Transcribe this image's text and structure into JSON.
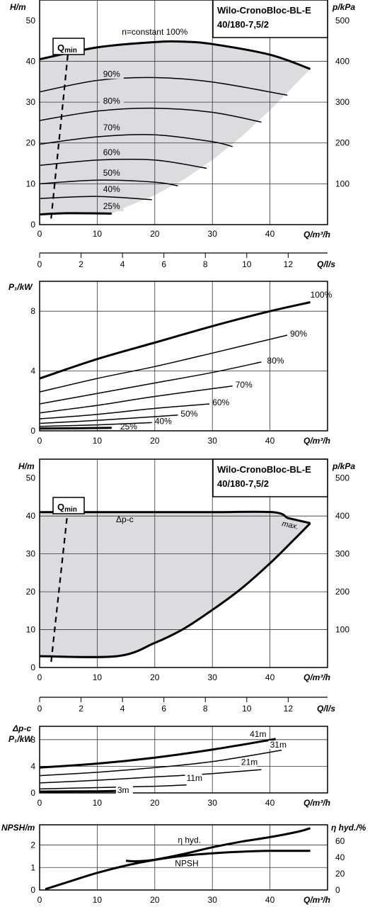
{
  "chart_data": [
    {
      "type": "line",
      "title": "Wilo-CronoBloc-BL-E 40/180-7,5/2",
      "title_line1": "Wilo-CronoBloc-BL-E",
      "title_line2": "40/180-7,5/2",
      "ylabel": "H/m",
      "ylabel_right": "p/kPa",
      "xlabel": "Q/m³/h",
      "xlim": [
        0,
        50
      ],
      "ylim": [
        0,
        55
      ],
      "ylim_right": [
        0,
        550
      ],
      "x_ticks": [
        "0",
        "10",
        "20",
        "30",
        "40"
      ],
      "y_ticks": [
        "0",
        "10",
        "20",
        "30",
        "40",
        "50"
      ],
      "y_ticks_right": [
        "100",
        "200",
        "300",
        "400",
        "500"
      ],
      "grid": true,
      "qmin_label": "Q",
      "qmin_sub": "min",
      "series": [
        {
          "name": "n=constant 100%",
          "x": [
            0,
            10,
            20,
            25,
            30,
            40,
            47
          ],
          "y": [
            40.5,
            43.4,
            44.7,
            44.8,
            44.2,
            41.6,
            38.1
          ]
        },
        {
          "name": "90%",
          "x": [
            0,
            10,
            20,
            30,
            43
          ],
          "y": [
            32.5,
            35.3,
            36.0,
            34.9,
            31.7
          ]
        },
        {
          "name": "80%",
          "x": [
            0,
            10,
            20,
            30,
            38.5
          ],
          "y": [
            25.5,
            27.8,
            28.5,
            27.5,
            25.1
          ]
        },
        {
          "name": "70%",
          "x": [
            0,
            10,
            20,
            30,
            33.5
          ],
          "y": [
            19.7,
            21.5,
            22.0,
            20.3,
            19.1
          ]
        },
        {
          "name": "60%",
          "x": [
            0,
            10,
            20,
            29
          ],
          "y": [
            14.5,
            15.8,
            15.8,
            13.8
          ]
        },
        {
          "name": "50%",
          "x": [
            0,
            10,
            20,
            24
          ],
          "y": [
            10.0,
            10.9,
            10.4,
            9.5
          ]
        },
        {
          "name": "40%",
          "x": [
            0,
            10,
            19.5
          ],
          "y": [
            6.4,
            6.9,
            6.1
          ]
        },
        {
          "name": "25%",
          "x": [
            0,
            5,
            12.5
          ],
          "y": [
            2.5,
            2.8,
            2.7
          ]
        }
      ],
      "min_curve": {
        "x": [
          0,
          12.5
        ],
        "y": [
          2.5,
          2.7
        ]
      },
      "qmin_line": {
        "x": [
          2,
          5
        ],
        "y": [
          1.5,
          43
        ]
      }
    },
    {
      "type": "line",
      "xlabel": "Q/l/s",
      "xlim": [
        0,
        13.9
      ],
      "x_ticks": [
        "0",
        "2",
        "4",
        "6",
        "8",
        "10",
        "12"
      ]
    },
    {
      "type": "line",
      "ylabel": "P₁/kW",
      "xlabel": "Q/m³/h",
      "xlim": [
        0,
        50
      ],
      "ylim": [
        0,
        10
      ],
      "x_ticks": [
        "0",
        "10",
        "20",
        "30",
        "40"
      ],
      "y_ticks": [
        "0",
        "4",
        "8"
      ],
      "grid": true,
      "series": [
        {
          "name": "100%",
          "x": [
            0,
            10,
            20,
            30,
            40,
            47
          ],
          "y": [
            3.5,
            4.8,
            5.9,
            7.0,
            8.0,
            8.6
          ]
        },
        {
          "name": "90%",
          "x": [
            0,
            10,
            20,
            30,
            43
          ],
          "y": [
            2.6,
            3.5,
            4.3,
            5.2,
            6.4
          ]
        },
        {
          "name": "80%",
          "x": [
            0,
            10,
            20,
            30,
            38.5
          ],
          "y": [
            1.8,
            2.5,
            3.2,
            3.9,
            4.6
          ]
        },
        {
          "name": "70%",
          "x": [
            0,
            10,
            20,
            33.5
          ],
          "y": [
            1.2,
            1.7,
            2.3,
            3.0
          ]
        },
        {
          "name": "60%",
          "x": [
            0,
            10,
            20,
            29.5
          ],
          "y": [
            0.8,
            1.1,
            1.5,
            1.8
          ]
        },
        {
          "name": "50%",
          "x": [
            0,
            10,
            20,
            24
          ],
          "y": [
            0.5,
            0.7,
            0.95,
            1.05
          ]
        },
        {
          "name": "40%",
          "x": [
            0,
            10,
            19.5
          ],
          "y": [
            0.3,
            0.4,
            0.55
          ]
        },
        {
          "name": "25%",
          "x": [
            0,
            12.5
          ],
          "y": [
            0.15,
            0.2
          ]
        }
      ]
    },
    {
      "type": "line",
      "title": "Wilo-CronoBloc-BL-E 40/180-7,5/2",
      "title_line1": "Wilo-CronoBloc-BL-E",
      "title_line2": "40/180-7,5/2",
      "ylabel": "H/m",
      "ylabel_right": "p/kPa",
      "xlabel": "Q/m³/h",
      "xlim": [
        0,
        50
      ],
      "ylim": [
        0,
        55
      ],
      "ylim_right": [
        0,
        550
      ],
      "x_ticks": [
        "0",
        "10",
        "20",
        "30",
        "40"
      ],
      "y_ticks": [
        "0",
        "10",
        "20",
        "30",
        "40",
        "50"
      ],
      "y_ticks_right": [
        "100",
        "200",
        "300",
        "400",
        "500"
      ],
      "grid": true,
      "qmin_label": "Q",
      "qmin_sub": "min",
      "annotations": [
        "Δp-c",
        "max."
      ],
      "series": [
        {
          "name": "Δp-c",
          "x": [
            0,
            10,
            20,
            30,
            40.5,
            43
          ],
          "y": [
            41,
            41,
            41,
            41,
            41,
            39.5
          ]
        },
        {
          "name": "max.",
          "x": [
            47,
            44,
            40,
            35,
            30,
            25,
            20,
            13.5,
            0
          ],
          "y": [
            38.1,
            33.5,
            27.5,
            20.8,
            15.2,
            10.2,
            6.5,
            3,
            3
          ]
        }
      ],
      "qmin_line": {
        "x": [
          2,
          5
        ],
        "y": [
          1.5,
          43
        ]
      }
    },
    {
      "type": "line",
      "xlabel": "Q/l/s",
      "xlim": [
        0,
        13.9
      ],
      "x_ticks": [
        "0",
        "2",
        "4",
        "6",
        "8",
        "10",
        "12"
      ]
    },
    {
      "type": "line",
      "ylabel_top": "Δp-c",
      "ylabel": "P₁/kW",
      "xlabel": "Q/m³/h",
      "xlim": [
        0,
        50
      ],
      "ylim": [
        0,
        10
      ],
      "x_ticks": [
        "0",
        "10",
        "20",
        "30",
        "40"
      ],
      "y_ticks": [
        "0",
        "4",
        "8"
      ],
      "grid": true,
      "series": [
        {
          "name": "41m",
          "x": [
            0,
            10,
            20,
            30,
            41
          ],
          "y": [
            3.8,
            4.4,
            5.3,
            6.5,
            8.1
          ]
        },
        {
          "name": "31m",
          "x": [
            0,
            10,
            20,
            30,
            42
          ],
          "y": [
            2.6,
            3.1,
            3.8,
            4.7,
            6.4
          ]
        },
        {
          "name": "21m",
          "x": [
            0,
            10,
            20,
            30,
            38.5
          ],
          "y": [
            1.5,
            1.9,
            2.4,
            2.9,
            3.5
          ]
        },
        {
          "name": "11m",
          "x": [
            0,
            10,
            20,
            25.5
          ],
          "y": [
            0.6,
            0.8,
            1.0,
            1.2
          ]
        },
        {
          "name": "3m",
          "x": [
            0,
            10,
            13.5
          ],
          "y": [
            0.2,
            0.25,
            0.3
          ]
        }
      ]
    },
    {
      "type": "line",
      "ylabel": "NPSH/m",
      "ylabel_right": "η hyd./%",
      "xlabel": "Q/m³/h",
      "xlim": [
        0,
        50
      ],
      "ylim": [
        0,
        2.9
      ],
      "ylim_right": [
        0,
        80
      ],
      "x_ticks": [
        "0",
        "10",
        "20",
        "30",
        "40"
      ],
      "y_ticks": [
        "0",
        "1",
        "2"
      ],
      "y_ticks_right": [
        "0",
        "20",
        "40",
        "60"
      ],
      "grid": true,
      "series": [
        {
          "name": "η hyd.",
          "axis": "right",
          "x": [
            1,
            5,
            10,
            15,
            20,
            25,
            30,
            35,
            40,
            47
          ],
          "y": [
            1,
            10,
            21,
            30,
            37,
            42,
            45,
            47,
            48,
            48
          ]
        },
        {
          "name": "NPSH",
          "axis": "left",
          "x": [
            15,
            17,
            20,
            25,
            30,
            35,
            40,
            45,
            47
          ],
          "y": [
            1.3,
            1.28,
            1.35,
            1.6,
            1.9,
            2.15,
            2.35,
            2.6,
            2.75
          ]
        }
      ]
    }
  ]
}
